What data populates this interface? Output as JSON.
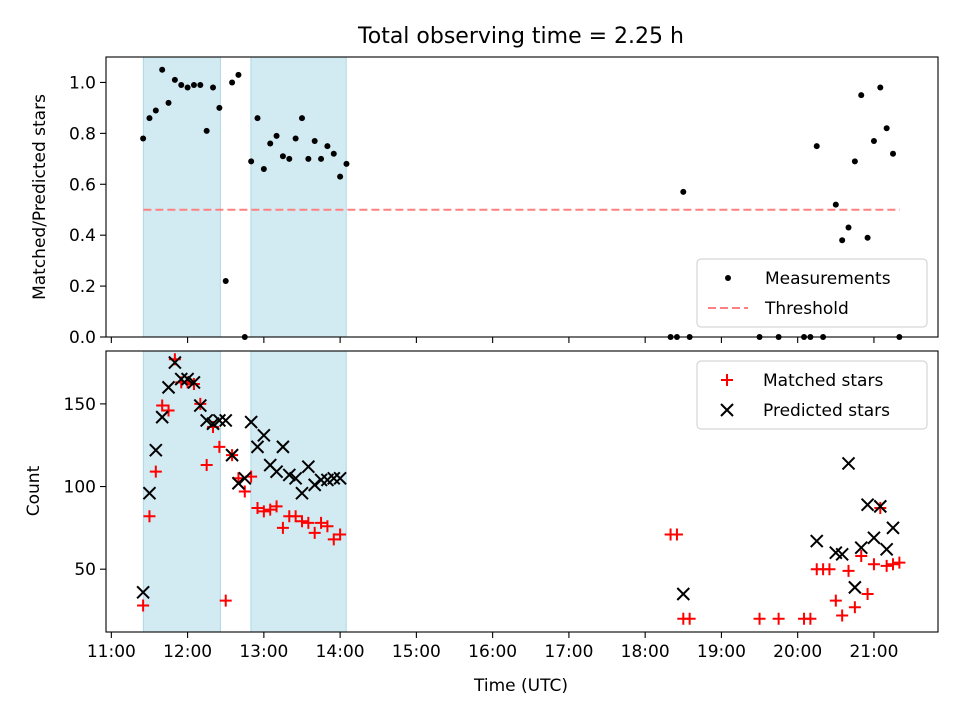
{
  "title": "Total observing time = 2.25 h",
  "colors": {
    "band": "#add8e6",
    "threshold": "#ff8080",
    "matched": "#ff0000",
    "predicted": "#000000",
    "measurement": "#000000"
  },
  "chart_data": [
    {
      "type": "scatter",
      "ylabel": "Matched/Predicted stars",
      "xlim": [
        10.93,
        21.84
      ],
      "ylim": [
        0,
        1.1
      ],
      "yticks": [
        0.0,
        0.2,
        0.4,
        0.6,
        0.8,
        1.0
      ],
      "ytick_labels": [
        "0.0",
        "0.2",
        "0.4",
        "0.6",
        "0.8",
        "1.0"
      ],
      "shaded_bands": [
        [
          11.42,
          12.43
        ],
        [
          12.83,
          14.08
        ]
      ],
      "threshold": {
        "name": "Threshold",
        "value": 0.5,
        "x_start": 11.42,
        "x_end": 21.34
      },
      "legend": {
        "location": "lower right",
        "entries": [
          "Measurements",
          "Threshold"
        ]
      },
      "series": [
        {
          "name": "Measurements",
          "marker": "dot",
          "points": [
            [
              "11:25",
              0.78
            ],
            [
              "11:30",
              0.86
            ],
            [
              "11:35",
              0.89
            ],
            [
              "11:40",
              1.05
            ],
            [
              "11:45",
              0.92
            ],
            [
              "11:50",
              1.01
            ],
            [
              "11:55",
              0.99
            ],
            [
              "12:00",
              0.98
            ],
            [
              "12:05",
              0.99
            ],
            [
              "12:10",
              0.99
            ],
            [
              "12:15",
              0.81
            ],
            [
              "12:20",
              0.98
            ],
            [
              "12:25",
              0.9
            ],
            [
              "12:30",
              0.22
            ],
            [
              "12:35",
              1.0
            ],
            [
              "12:40",
              1.03
            ],
            [
              "12:45",
              0.0
            ],
            [
              "12:50",
              0.69
            ],
            [
              "12:55",
              0.86
            ],
            [
              "13:00",
              0.66
            ],
            [
              "13:05",
              0.76
            ],
            [
              "13:10",
              0.79
            ],
            [
              "13:15",
              0.71
            ],
            [
              "13:20",
              0.7
            ],
            [
              "13:25",
              0.78
            ],
            [
              "13:30",
              0.86
            ],
            [
              "13:35",
              0.7
            ],
            [
              "13:40",
              0.77
            ],
            [
              "13:45",
              0.7
            ],
            [
              "13:50",
              0.75
            ],
            [
              "13:55",
              0.72
            ],
            [
              "14:00",
              0.63
            ],
            [
              "14:05",
              0.68
            ],
            [
              "18:20",
              0.0
            ],
            [
              "18:25",
              0.0
            ],
            [
              "18:30",
              0.57
            ],
            [
              "18:35",
              0.0
            ],
            [
              "19:30",
              0.0
            ],
            [
              "19:45",
              0.0
            ],
            [
              "20:05",
              0.0
            ],
            [
              "20:10",
              0.0
            ],
            [
              "20:15",
              0.75
            ],
            [
              "20:20",
              0.0
            ],
            [
              "20:30",
              0.52
            ],
            [
              "20:35",
              0.38
            ],
            [
              "20:40",
              0.43
            ],
            [
              "20:45",
              0.69
            ],
            [
              "20:50",
              0.95
            ],
            [
              "20:55",
              0.39
            ],
            [
              "21:00",
              0.77
            ],
            [
              "21:05",
              0.98
            ],
            [
              "21:10",
              0.82
            ],
            [
              "21:15",
              0.72
            ],
            [
              "21:20",
              0.0
            ]
          ]
        }
      ]
    },
    {
      "type": "scatter",
      "xlabel": "Time (UTC)",
      "ylabel": "Count",
      "xlim": [
        10.93,
        21.84
      ],
      "ylim": [
        12,
        182
      ],
      "xticks": [
        11,
        12,
        13,
        14,
        15,
        16,
        17,
        18,
        19,
        20,
        21
      ],
      "xtick_labels": [
        "11:00",
        "12:00",
        "13:00",
        "14:00",
        "15:00",
        "16:00",
        "17:00",
        "18:00",
        "19:00",
        "20:00",
        "21:00"
      ],
      "yticks": [
        50,
        100,
        150
      ],
      "ytick_labels": [
        "50",
        "100",
        "150"
      ],
      "shaded_bands": [
        [
          11.42,
          12.43
        ],
        [
          12.83,
          14.08
        ]
      ],
      "legend": {
        "location": "upper right",
        "entries": [
          "Matched stars",
          "Predicted stars"
        ]
      },
      "series": [
        {
          "name": "Matched stars",
          "marker": "plus",
          "points": [
            [
              "11:25",
              28
            ],
            [
              "11:30",
              82
            ],
            [
              "11:35",
              109
            ],
            [
              "11:40",
              149
            ],
            [
              "11:45",
              146
            ],
            [
              "11:50",
              177
            ],
            [
              "11:55",
              163
            ],
            [
              "12:00",
              163
            ],
            [
              "12:05",
              162
            ],
            [
              "12:10",
              150
            ],
            [
              "12:15",
              113
            ],
            [
              "12:20",
              136
            ],
            [
              "12:25",
              124
            ],
            [
              "12:30",
              31
            ],
            [
              "12:35",
              119
            ],
            [
              "12:40",
              105
            ],
            [
              "12:45",
              97
            ],
            [
              "12:50",
              106
            ],
            [
              "12:55",
              87
            ],
            [
              "13:00",
              85
            ],
            [
              "13:05",
              86
            ],
            [
              "13:10",
              88
            ],
            [
              "13:15",
              75
            ],
            [
              "13:20",
              82
            ],
            [
              "13:25",
              82
            ],
            [
              "13:30",
              79
            ],
            [
              "13:35",
              78
            ],
            [
              "13:40",
              72
            ],
            [
              "13:45",
              78
            ],
            [
              "13:50",
              76
            ],
            [
              "13:55",
              68
            ],
            [
              "14:00",
              71
            ],
            [
              "18:20",
              71
            ],
            [
              "18:25",
              71
            ],
            [
              "18:30",
              20
            ],
            [
              "18:35",
              20
            ],
            [
              "19:30",
              20
            ],
            [
              "19:45",
              20
            ],
            [
              "20:05",
              20
            ],
            [
              "20:10",
              20
            ],
            [
              "20:15",
              50
            ],
            [
              "20:20",
              50
            ],
            [
              "20:25",
              50
            ],
            [
              "20:30",
              31
            ],
            [
              "20:35",
              22
            ],
            [
              "20:40",
              49
            ],
            [
              "20:45",
              27
            ],
            [
              "20:50",
              58
            ],
            [
              "20:55",
              35
            ],
            [
              "21:00",
              53
            ],
            [
              "21:05",
              87
            ],
            [
              "21:10",
              52
            ],
            [
              "21:15",
              53
            ],
            [
              "21:20",
              54
            ]
          ]
        },
        {
          "name": "Predicted stars",
          "marker": "x",
          "points": [
            [
              "11:25",
              36
            ],
            [
              "11:30",
              96
            ],
            [
              "11:35",
              122
            ],
            [
              "11:40",
              142
            ],
            [
              "11:45",
              160
            ],
            [
              "11:50",
              175
            ],
            [
              "11:55",
              165
            ],
            [
              "12:00",
              165
            ],
            [
              "12:05",
              163
            ],
            [
              "12:10",
              149
            ],
            [
              "12:15",
              140
            ],
            [
              "12:20",
              138
            ],
            [
              "12:25",
              140
            ],
            [
              "12:30",
              140
            ],
            [
              "12:35",
              119
            ],
            [
              "12:40",
              102
            ],
            [
              "12:45",
              105
            ],
            [
              "12:50",
              139
            ],
            [
              "12:55",
              124
            ],
            [
              "13:00",
              131
            ],
            [
              "13:05",
              113
            ],
            [
              "13:10",
              109
            ],
            [
              "13:15",
              124
            ],
            [
              "13:20",
              107
            ],
            [
              "13:25",
              105
            ],
            [
              "13:30",
              96
            ],
            [
              "13:35",
              112
            ],
            [
              "13:40",
              101
            ],
            [
              "13:45",
              104
            ],
            [
              "13:50",
              104
            ],
            [
              "13:55",
              105
            ],
            [
              "14:00",
              105
            ],
            [
              "18:30",
              35
            ],
            [
              "20:15",
              67
            ],
            [
              "20:30",
              60
            ],
            [
              "20:35",
              59
            ],
            [
              "20:40",
              114
            ],
            [
              "20:45",
              39
            ],
            [
              "20:50",
              63
            ],
            [
              "20:55",
              89
            ],
            [
              "21:00",
              69
            ],
            [
              "21:05",
              88
            ],
            [
              "21:10",
              62
            ],
            [
              "21:15",
              75
            ]
          ]
        }
      ]
    }
  ]
}
